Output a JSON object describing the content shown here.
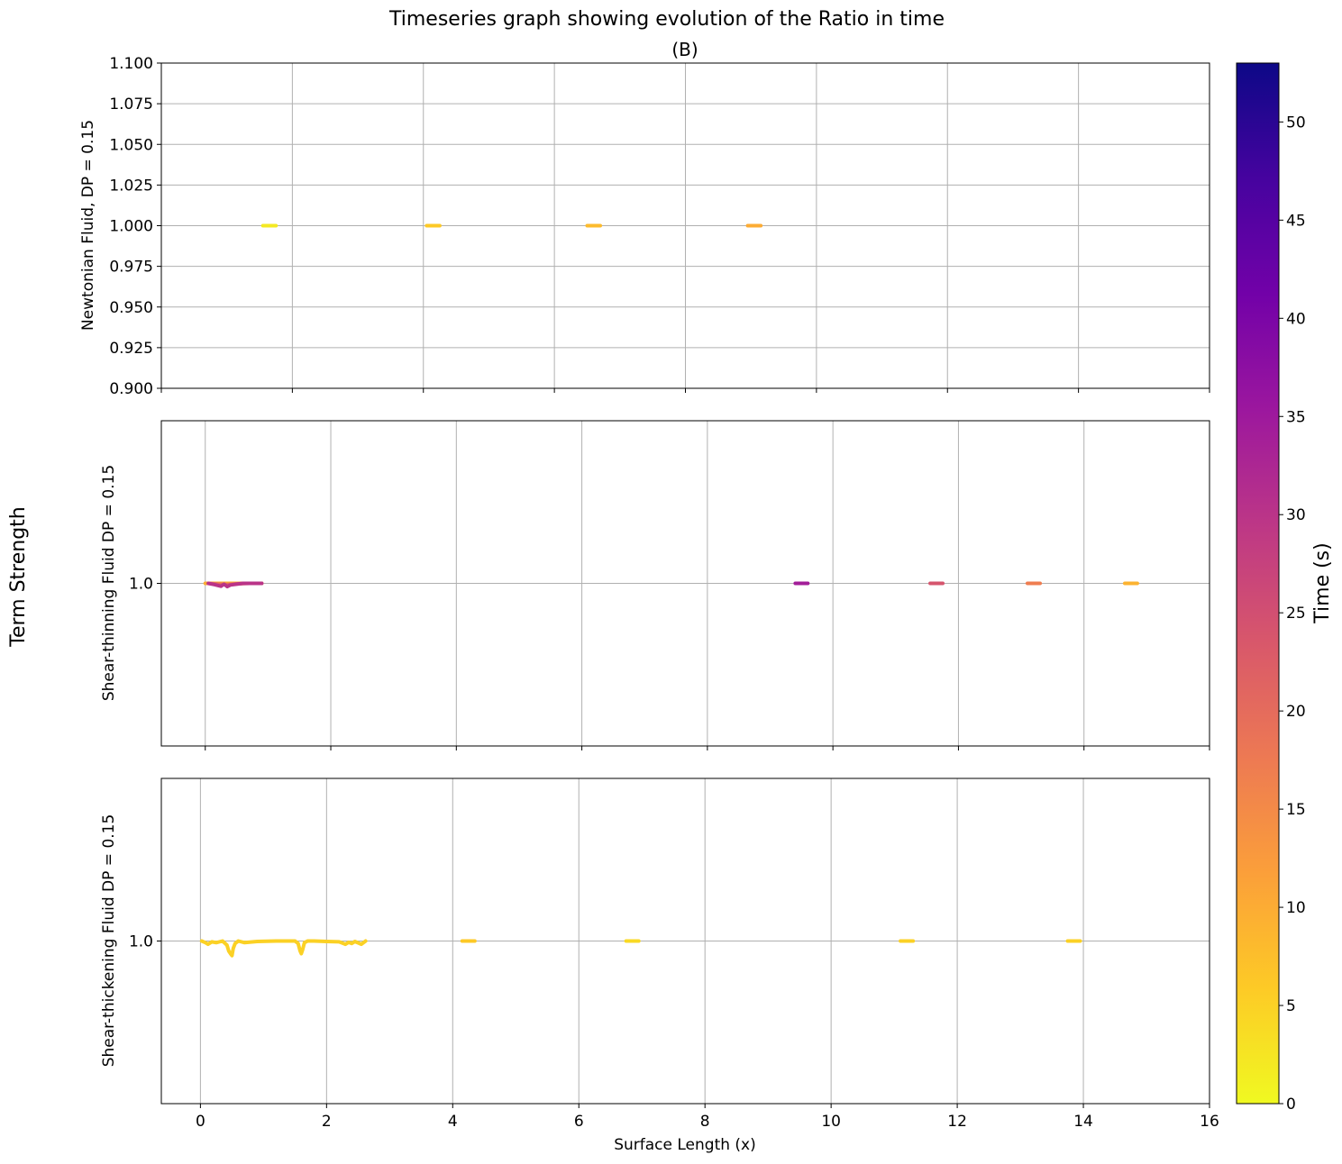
{
  "figure": {
    "title": "Timeseries graph showing evolution of the Ratio in time",
    "sup_ylabel": "Term Strength"
  },
  "colorbar": {
    "label": "Time (s)",
    "range": [
      0,
      53
    ],
    "ticks": [
      0,
      5,
      10,
      15,
      20,
      25,
      30,
      35,
      40,
      45,
      50
    ],
    "tick_labels": [
      "0",
      "5",
      "10",
      "15",
      "20",
      "25",
      "30",
      "35",
      "40",
      "45",
      "50"
    ],
    "colormap": "plasma_r",
    "stops": [
      "#f0f921",
      "#fdca26",
      "#fb9f3a",
      "#ed7953",
      "#d8576b",
      "#bd3786",
      "#9c179e",
      "#7201a8",
      "#46039f",
      "#0d0887"
    ]
  },
  "chart_data": [
    {
      "type": "line",
      "title": "(B)",
      "ylabel": "Newtonian Fluid, DP = 0.15",
      "xlabel": "",
      "xlim": [
        0,
        16
      ],
      "ylim": [
        0.9,
        1.1
      ],
      "xticks": [
        0,
        2,
        4,
        6,
        8,
        10,
        12,
        14,
        16
      ],
      "xtick_labels_shown": false,
      "yticks": [
        0.9,
        0.925,
        0.95,
        0.975,
        1.0,
        1.025,
        1.05,
        1.075,
        1.1
      ],
      "ytick_labels": [
        "0.900",
        "0.925",
        "0.950",
        "0.975",
        "1.000",
        "1.025",
        "1.050",
        "1.075",
        "1.100"
      ],
      "grid": true,
      "series": [
        {
          "time": 2,
          "x": [
            1.55,
            1.6,
            1.65,
            1.7,
            1.75
          ],
          "y": [
            1.0,
            1.0,
            1.0,
            1.0,
            1.0
          ]
        },
        {
          "time": 6,
          "x": [
            4.05,
            4.1,
            4.15,
            4.2,
            4.25
          ],
          "y": [
            1.0,
            1.0,
            1.0,
            1.0,
            1.0
          ]
        },
        {
          "time": 8,
          "x": [
            6.5,
            6.55,
            6.6,
            6.65,
            6.7
          ],
          "y": [
            1.0,
            1.0,
            1.0,
            1.0,
            1.0
          ]
        },
        {
          "time": 10,
          "x": [
            8.95,
            9.0,
            9.05,
            9.1,
            9.15
          ],
          "y": [
            1.0,
            1.0,
            1.0,
            1.0,
            1.0
          ]
        }
      ]
    },
    {
      "type": "line",
      "title": "",
      "ylabel": "Shear-thinning Fluid DP = 0.15",
      "xlabel": "",
      "xlim": [
        -0.7,
        16
      ],
      "ylim": [
        0.96,
        1.04
      ],
      "xticks": [
        0,
        2,
        4,
        6,
        8,
        10,
        12,
        14,
        16
      ],
      "xtick_labels_shown": false,
      "yticks": [
        1.0
      ],
      "ytick_labels": [
        "1.0"
      ],
      "grid": true,
      "series": [
        {
          "time": 10,
          "x": [
            0.0,
            0.2,
            0.4,
            0.6,
            0.8,
            0.9
          ],
          "y": [
            1.0,
            1.0,
            1.0,
            1.0,
            1.0,
            1.0
          ]
        },
        {
          "time": 20,
          "x": [
            0.05,
            0.2,
            0.35,
            0.5,
            0.7,
            0.9
          ],
          "y": [
            1.0,
            0.9998,
            0.9997,
            0.9999,
            1.0,
            1.0
          ]
        },
        {
          "time": 30,
          "x": [
            0.05,
            0.15,
            0.25,
            0.3,
            0.35,
            0.4,
            0.5,
            0.6,
            0.8,
            0.9
          ],
          "y": [
            1.0,
            0.9997,
            0.9993,
            0.9998,
            0.9992,
            0.9996,
            0.9998,
            1.0,
            1.0,
            1.0
          ]
        },
        {
          "time": 34,
          "x": [
            9.4,
            9.5,
            9.6
          ],
          "y": [
            1.0,
            1.0,
            1.0
          ]
        },
        {
          "time": 24,
          "x": [
            11.55,
            11.65,
            11.75
          ],
          "y": [
            1.0,
            1.0,
            1.0
          ]
        },
        {
          "time": 17,
          "x": [
            13.1,
            13.2,
            13.3
          ],
          "y": [
            1.0,
            1.0,
            1.0
          ]
        },
        {
          "time": 9,
          "x": [
            14.65,
            14.75,
            14.85
          ],
          "y": [
            1.0,
            1.0,
            1.0
          ]
        }
      ]
    },
    {
      "type": "line",
      "title": "",
      "ylabel": "Shear-thickening Fluid DP = 0.15",
      "xlabel": "Surface Length (x)",
      "xlim": [
        -0.62,
        16
      ],
      "ylim": [
        0.96,
        1.04
      ],
      "xticks": [
        0,
        2,
        4,
        6,
        8,
        10,
        12,
        14,
        16
      ],
      "xtick_labels": [
        "0",
        "2",
        "4",
        "6",
        "8",
        "10",
        "12",
        "14",
        "16"
      ],
      "yticks": [
        1.0
      ],
      "ytick_labels": [
        "1.0"
      ],
      "grid": true,
      "series": [
        {
          "time": 5,
          "x": [
            0.02,
            0.08,
            0.12,
            0.18,
            0.25,
            0.35,
            0.42,
            0.45,
            0.48,
            0.5,
            0.52,
            0.55,
            0.6,
            0.7,
            0.9,
            1.2,
            1.5,
            1.55,
            1.58,
            1.6,
            1.62,
            1.65,
            1.7,
            1.8,
            2.0,
            2.2,
            2.3,
            2.35,
            2.4,
            2.45,
            2.55,
            2.62
          ],
          "y": [
            1.0,
            0.9996,
            0.9992,
            0.9998,
            0.9996,
            1.0,
            0.999,
            0.9975,
            0.9968,
            0.9964,
            0.9982,
            0.9994,
            1.0,
            0.9996,
            0.9999,
            1.0,
            1.0,
            0.9994,
            0.9976,
            0.9969,
            0.9978,
            0.9996,
            1.0,
            1.0,
            0.9999,
            0.9998,
            0.9992,
            0.9997,
            0.9994,
            0.9999,
            0.9992,
            1.0
          ]
        },
        {
          "time": 6,
          "x": [
            4.15,
            4.25,
            4.35
          ],
          "y": [
            1.0,
            1.0,
            1.0
          ]
        },
        {
          "time": 4,
          "x": [
            6.75,
            6.85,
            6.95
          ],
          "y": [
            1.0,
            1.0,
            1.0
          ]
        },
        {
          "time": 5,
          "x": [
            11.1,
            11.2,
            11.3
          ],
          "y": [
            1.0,
            1.0,
            1.0
          ]
        },
        {
          "time": 5,
          "x": [
            13.75,
            13.85,
            13.95
          ],
          "y": [
            1.0,
            1.0,
            1.0
          ]
        }
      ]
    }
  ]
}
